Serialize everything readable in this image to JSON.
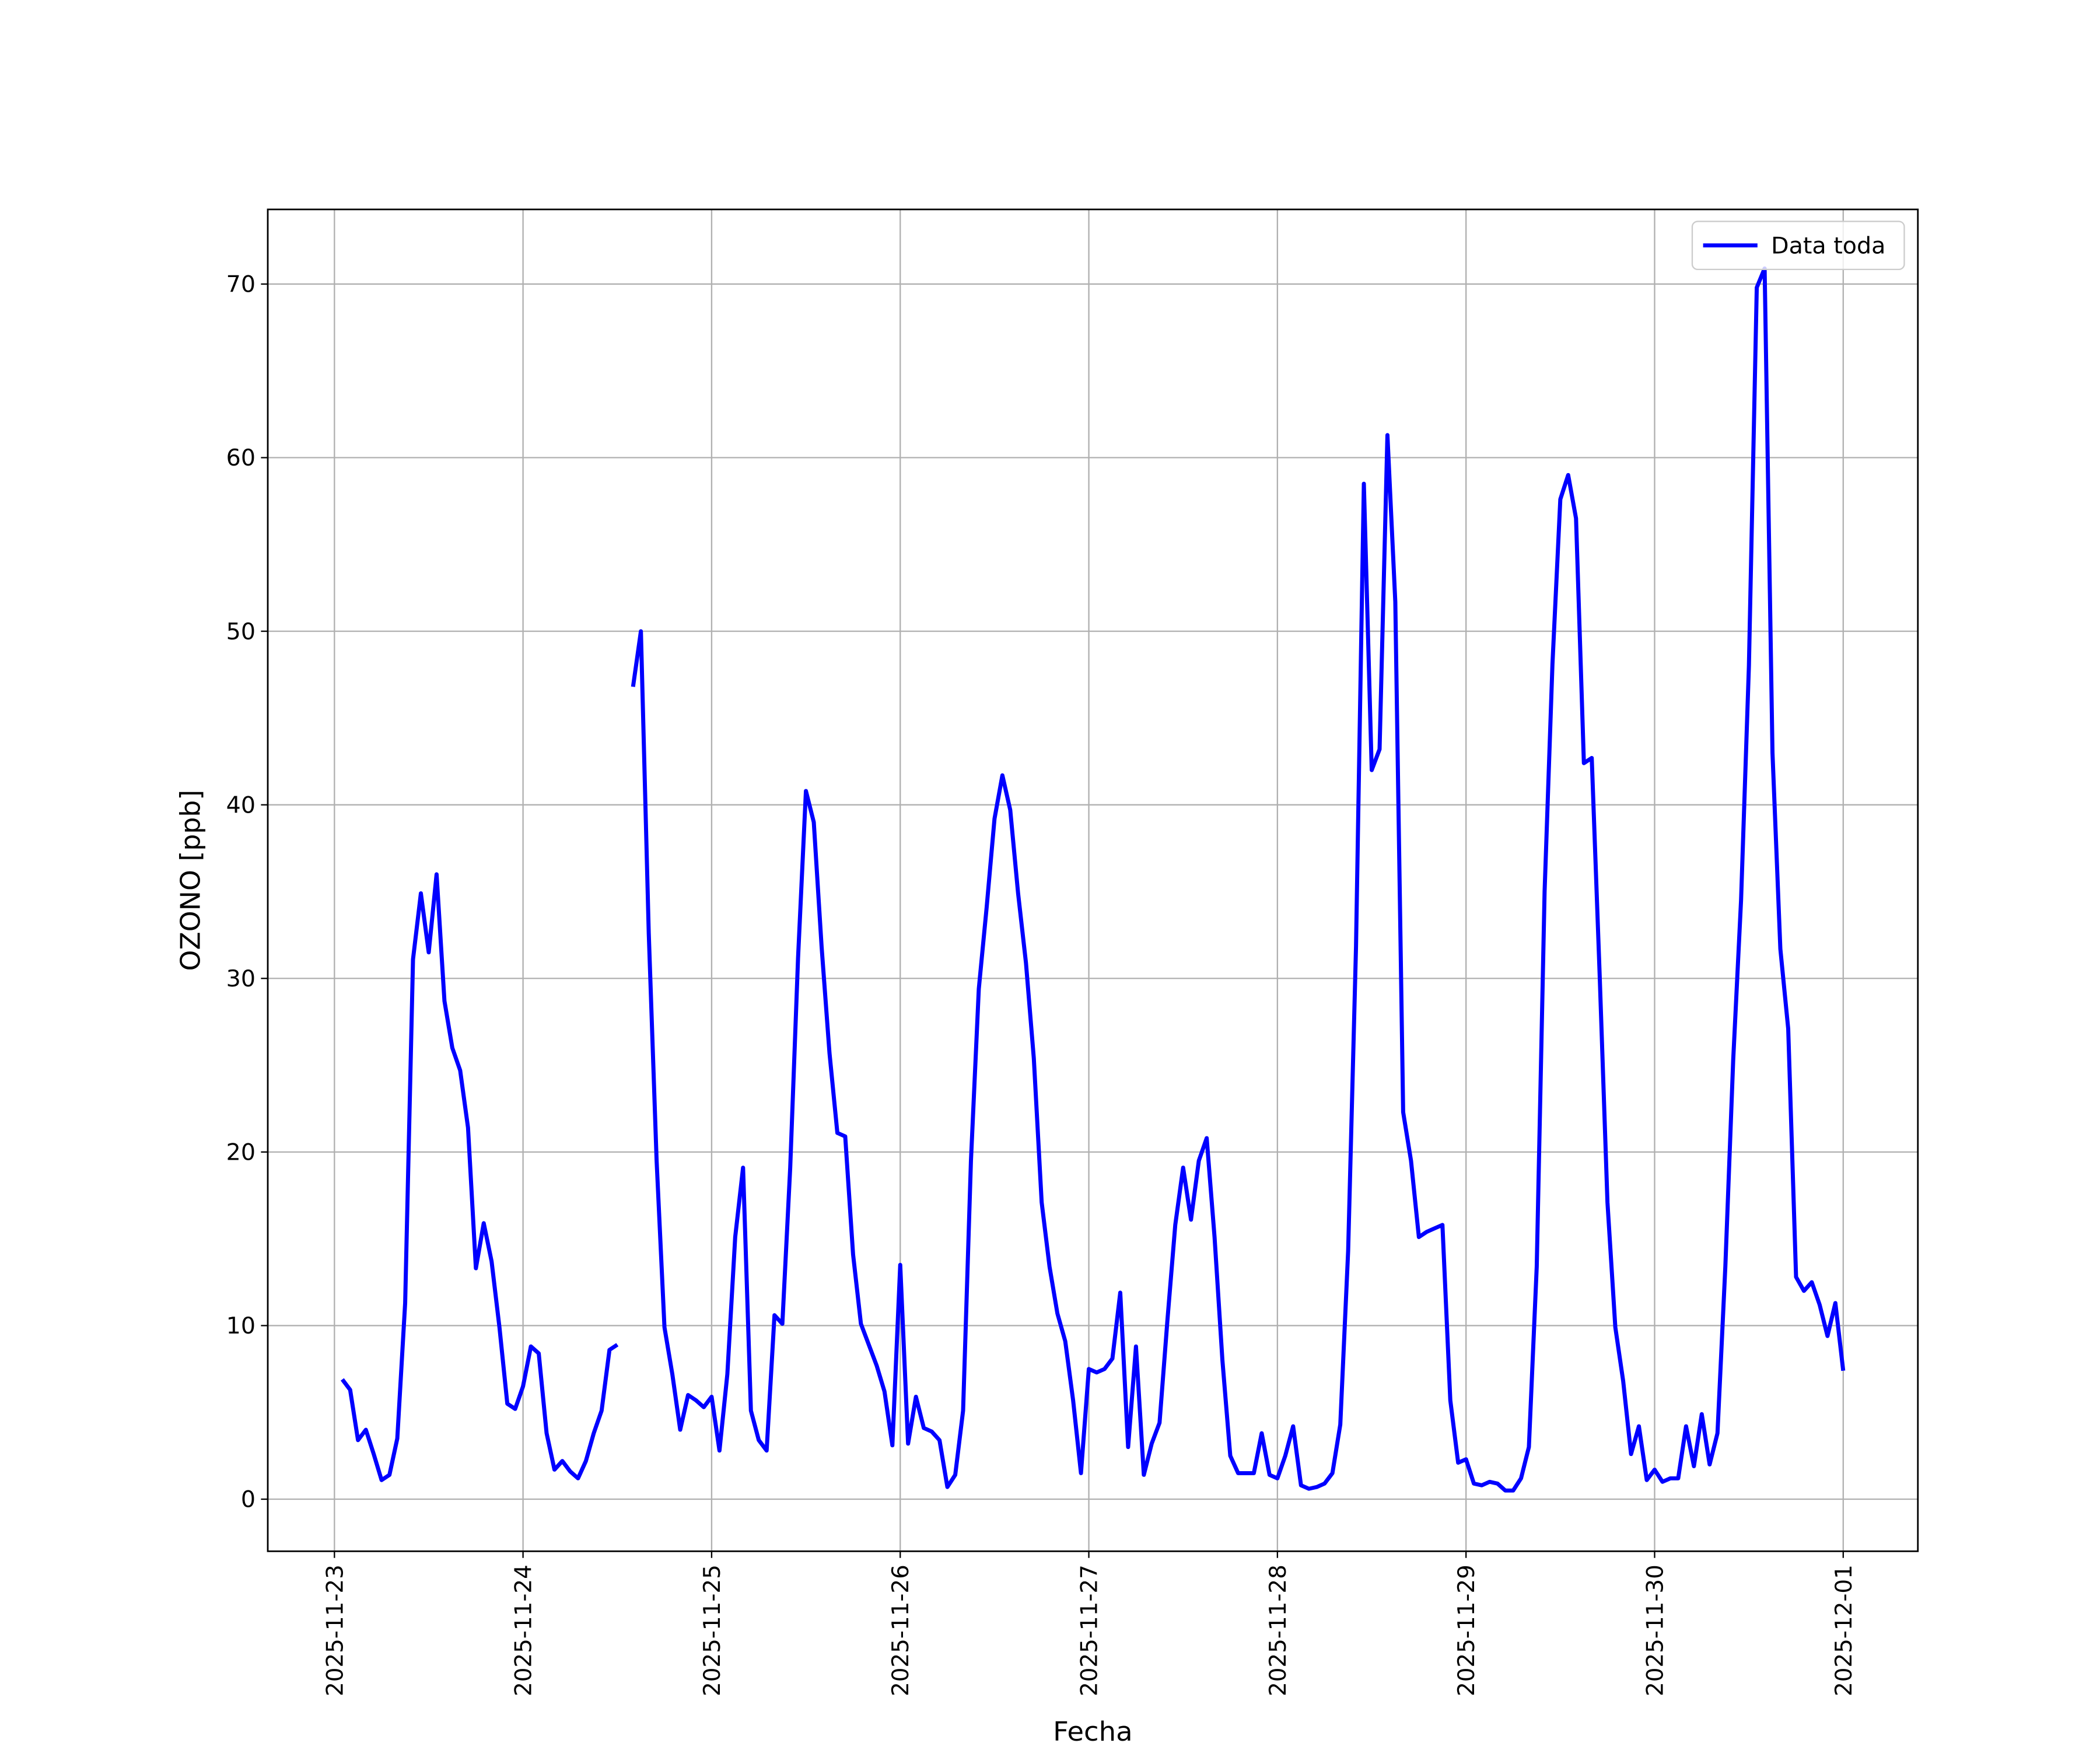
{
  "chart_data": {
    "type": "line",
    "xlabel": "Fecha",
    "ylabel": "OZONO [ppb]",
    "x": [
      "2025-11-23 01:00",
      "2025-11-23 02:00",
      "2025-11-23 03:00",
      "2025-11-23 04:00",
      "2025-11-23 05:00",
      "2025-11-23 06:00",
      "2025-11-23 07:00",
      "2025-11-23 08:00",
      "2025-11-23 09:00",
      "2025-11-23 10:00",
      "2025-11-23 11:00",
      "2025-11-23 12:00",
      "2025-11-23 13:00",
      "2025-11-23 14:00",
      "2025-11-23 15:00",
      "2025-11-23 16:00",
      "2025-11-23 17:00",
      "2025-11-23 18:00",
      "2025-11-23 19:00",
      "2025-11-23 20:00",
      "2025-11-23 21:00",
      "2025-11-23 22:00",
      "2025-11-23 23:00",
      "2025-11-24 00:00",
      "2025-11-24 01:00",
      "2025-11-24 02:00",
      "2025-11-24 03:00",
      "2025-11-24 04:00",
      "2025-11-24 05:00",
      "2025-11-24 06:00",
      "2025-11-24 07:00",
      "2025-11-24 08:00",
      "2025-11-24 09:00",
      "2025-11-24 10:00",
      "2025-11-24 11:00",
      "2025-11-24 12:00",
      "2025-11-24 13:00",
      "2025-11-24 14:00",
      "2025-11-24 15:00",
      "2025-11-24 16:00",
      "2025-11-24 17:00",
      "2025-11-24 18:00",
      "2025-11-24 19:00",
      "2025-11-24 20:00",
      "2025-11-24 21:00",
      "2025-11-24 22:00",
      "2025-11-24 23:00",
      "2025-11-25 00:00",
      "2025-11-25 01:00",
      "2025-11-25 02:00",
      "2025-11-25 03:00",
      "2025-11-25 04:00",
      "2025-11-25 05:00",
      "2025-11-25 06:00",
      "2025-11-25 07:00",
      "2025-11-25 08:00",
      "2025-11-25 09:00",
      "2025-11-25 10:00",
      "2025-11-25 11:00",
      "2025-11-25 12:00",
      "2025-11-25 13:00",
      "2025-11-25 14:00",
      "2025-11-25 15:00",
      "2025-11-25 16:00",
      "2025-11-25 17:00",
      "2025-11-25 18:00",
      "2025-11-25 19:00",
      "2025-11-25 20:00",
      "2025-11-25 21:00",
      "2025-11-25 22:00",
      "2025-11-25 23:00",
      "2025-11-26 00:00",
      "2025-11-26 01:00",
      "2025-11-26 02:00",
      "2025-11-26 03:00",
      "2025-11-26 04:00",
      "2025-11-26 05:00",
      "2025-11-26 06:00",
      "2025-11-26 07:00",
      "2025-11-26 08:00",
      "2025-11-26 09:00",
      "2025-11-26 10:00",
      "2025-11-26 11:00",
      "2025-11-26 12:00",
      "2025-11-26 13:00",
      "2025-11-26 14:00",
      "2025-11-26 15:00",
      "2025-11-26 16:00",
      "2025-11-26 17:00",
      "2025-11-26 18:00",
      "2025-11-26 19:00",
      "2025-11-26 20:00",
      "2025-11-26 21:00",
      "2025-11-26 22:00",
      "2025-11-26 23:00",
      "2025-11-27 00:00",
      "2025-11-27 01:00",
      "2025-11-27 02:00",
      "2025-11-27 03:00",
      "2025-11-27 04:00",
      "2025-11-27 05:00",
      "2025-11-27 06:00",
      "2025-11-27 07:00",
      "2025-11-27 08:00",
      "2025-11-27 09:00",
      "2025-11-27 10:00",
      "2025-11-27 11:00",
      "2025-11-27 12:00",
      "2025-11-27 13:00",
      "2025-11-27 14:00",
      "2025-11-27 15:00",
      "2025-11-27 16:00",
      "2025-11-27 17:00",
      "2025-11-27 18:00",
      "2025-11-27 19:00",
      "2025-11-27 20:00",
      "2025-11-27 21:00",
      "2025-11-27 22:00",
      "2025-11-27 23:00",
      "2025-11-28 00:00",
      "2025-11-28 01:00",
      "2025-11-28 02:00",
      "2025-11-28 03:00",
      "2025-11-28 04:00",
      "2025-11-28 05:00",
      "2025-11-28 06:00",
      "2025-11-28 07:00",
      "2025-11-28 08:00",
      "2025-11-28 09:00",
      "2025-11-28 10:00",
      "2025-11-28 11:00",
      "2025-11-28 12:00",
      "2025-11-28 13:00",
      "2025-11-28 14:00",
      "2025-11-28 15:00",
      "2025-11-28 16:00",
      "2025-11-28 17:00",
      "2025-11-28 18:00",
      "2025-11-28 19:00",
      "2025-11-28 20:00",
      "2025-11-28 21:00",
      "2025-11-28 22:00",
      "2025-11-28 23:00",
      "2025-11-29 00:00",
      "2025-11-29 01:00",
      "2025-11-29 02:00",
      "2025-11-29 03:00",
      "2025-11-29 04:00",
      "2025-11-29 05:00",
      "2025-11-29 06:00",
      "2025-11-29 07:00",
      "2025-11-29 08:00",
      "2025-11-29 09:00",
      "2025-11-29 10:00",
      "2025-11-29 11:00",
      "2025-11-29 12:00",
      "2025-11-29 13:00",
      "2025-11-29 14:00",
      "2025-11-29 15:00",
      "2025-11-29 16:00",
      "2025-11-29 17:00",
      "2025-11-29 18:00",
      "2025-11-29 19:00",
      "2025-11-29 20:00",
      "2025-11-29 21:00",
      "2025-11-29 22:00",
      "2025-11-29 23:00",
      "2025-11-30 00:00",
      "2025-11-30 01:00",
      "2025-11-30 02:00",
      "2025-11-30 03:00",
      "2025-11-30 04:00",
      "2025-11-30 05:00",
      "2025-11-30 06:00",
      "2025-11-30 07:00",
      "2025-11-30 08:00",
      "2025-11-30 09:00",
      "2025-11-30 10:00",
      "2025-11-30 11:00",
      "2025-11-30 12:00",
      "2025-11-30 13:00",
      "2025-11-30 14:00",
      "2025-11-30 15:00",
      "2025-11-30 16:00",
      "2025-11-30 17:00",
      "2025-11-30 18:00",
      "2025-11-30 19:00",
      "2025-11-30 20:00",
      "2025-11-30 21:00",
      "2025-11-30 22:00",
      "2025-11-30 23:00",
      "2025-12-01 00:00"
    ],
    "series": [
      {
        "name": "Data toda",
        "color": "#0000ff",
        "values": [
          6.9,
          6.3,
          3.4,
          4.0,
          2.6,
          1.1,
          1.4,
          3.5,
          11.3,
          31.1,
          34.9,
          31.5,
          36.0,
          28.7,
          26.0,
          24.7,
          21.4,
          13.3,
          15.9,
          13.7,
          9.9,
          5.5,
          5.2,
          6.5,
          8.8,
          8.4,
          3.8,
          1.7,
          2.2,
          1.6,
          1.2,
          2.2,
          3.8,
          5.1,
          8.6,
          8.9,
          null,
          46.8,
          50.0,
          32.6,
          19.5,
          9.9,
          7.2,
          4.0,
          6.0,
          5.7,
          5.3,
          5.9,
          2.8,
          7.2,
          15.1,
          19.1,
          5.1,
          3.4,
          2.8,
          10.6,
          10.1,
          19.1,
          31.2,
          40.8,
          39.0,
          31.8,
          25.7,
          21.1,
          20.9,
          14.1,
          10.1,
          8.9,
          7.7,
          6.2,
          3.1,
          13.5,
          3.2,
          5.9,
          4.1,
          3.9,
          3.4,
          0.7,
          1.4,
          5.1,
          19.5,
          29.4,
          34.1,
          39.2,
          41.7,
          39.7,
          34.9,
          30.9,
          25.4,
          17.1,
          13.4,
          10.7,
          9.1,
          5.7,
          1.5,
          7.5,
          7.3,
          7.5,
          8.1,
          11.9,
          3.0,
          8.8,
          1.4,
          3.2,
          4.4,
          10.3,
          15.8,
          19.1,
          16.1,
          19.5,
          20.8,
          15.1,
          8.0,
          2.5,
          1.5,
          1.5,
          1.5,
          3.8,
          1.4,
          1.2,
          2.5,
          4.2,
          0.8,
          0.6,
          0.7,
          0.9,
          1.5,
          4.3,
          14.3,
          31.8,
          58.5,
          42.0,
          43.2,
          61.3,
          51.7,
          22.3,
          19.5,
          15.1,
          15.4,
          15.6,
          15.8,
          5.7,
          2.1,
          2.3,
          0.9,
          0.8,
          1.0,
          0.9,
          0.5,
          0.5,
          1.2,
          3.0,
          13.4,
          35.0,
          48.1,
          57.6,
          59.0,
          56.5,
          42.4,
          42.7,
          30.3,
          17.1,
          9.9,
          6.8,
          2.6,
          4.2,
          1.1,
          1.7,
          1.0,
          1.2,
          1.2,
          4.2,
          1.9,
          4.9,
          2.0,
          3.8,
          13.4,
          25.3,
          34.5,
          48.0,
          69.8,
          70.9,
          43.0,
          31.7,
          27.1,
          12.8,
          12.0,
          12.5,
          11.2,
          9.4,
          11.3,
          7.4
        ]
      }
    ],
    "xlim": [
      "2025-11-22 15:31",
      "2025-12-01 09:30"
    ],
    "xticks": [
      "2025-11-23",
      "2025-11-24",
      "2025-11-25",
      "2025-11-26",
      "2025-11-27",
      "2025-11-28",
      "2025-11-29",
      "2025-11-30",
      "2025-12-01"
    ],
    "ylim": [
      -3.0,
      74.3
    ],
    "yticks": [
      0,
      10,
      20,
      30,
      40,
      50,
      60,
      70
    ],
    "grid": true,
    "legend": "upper right"
  }
}
